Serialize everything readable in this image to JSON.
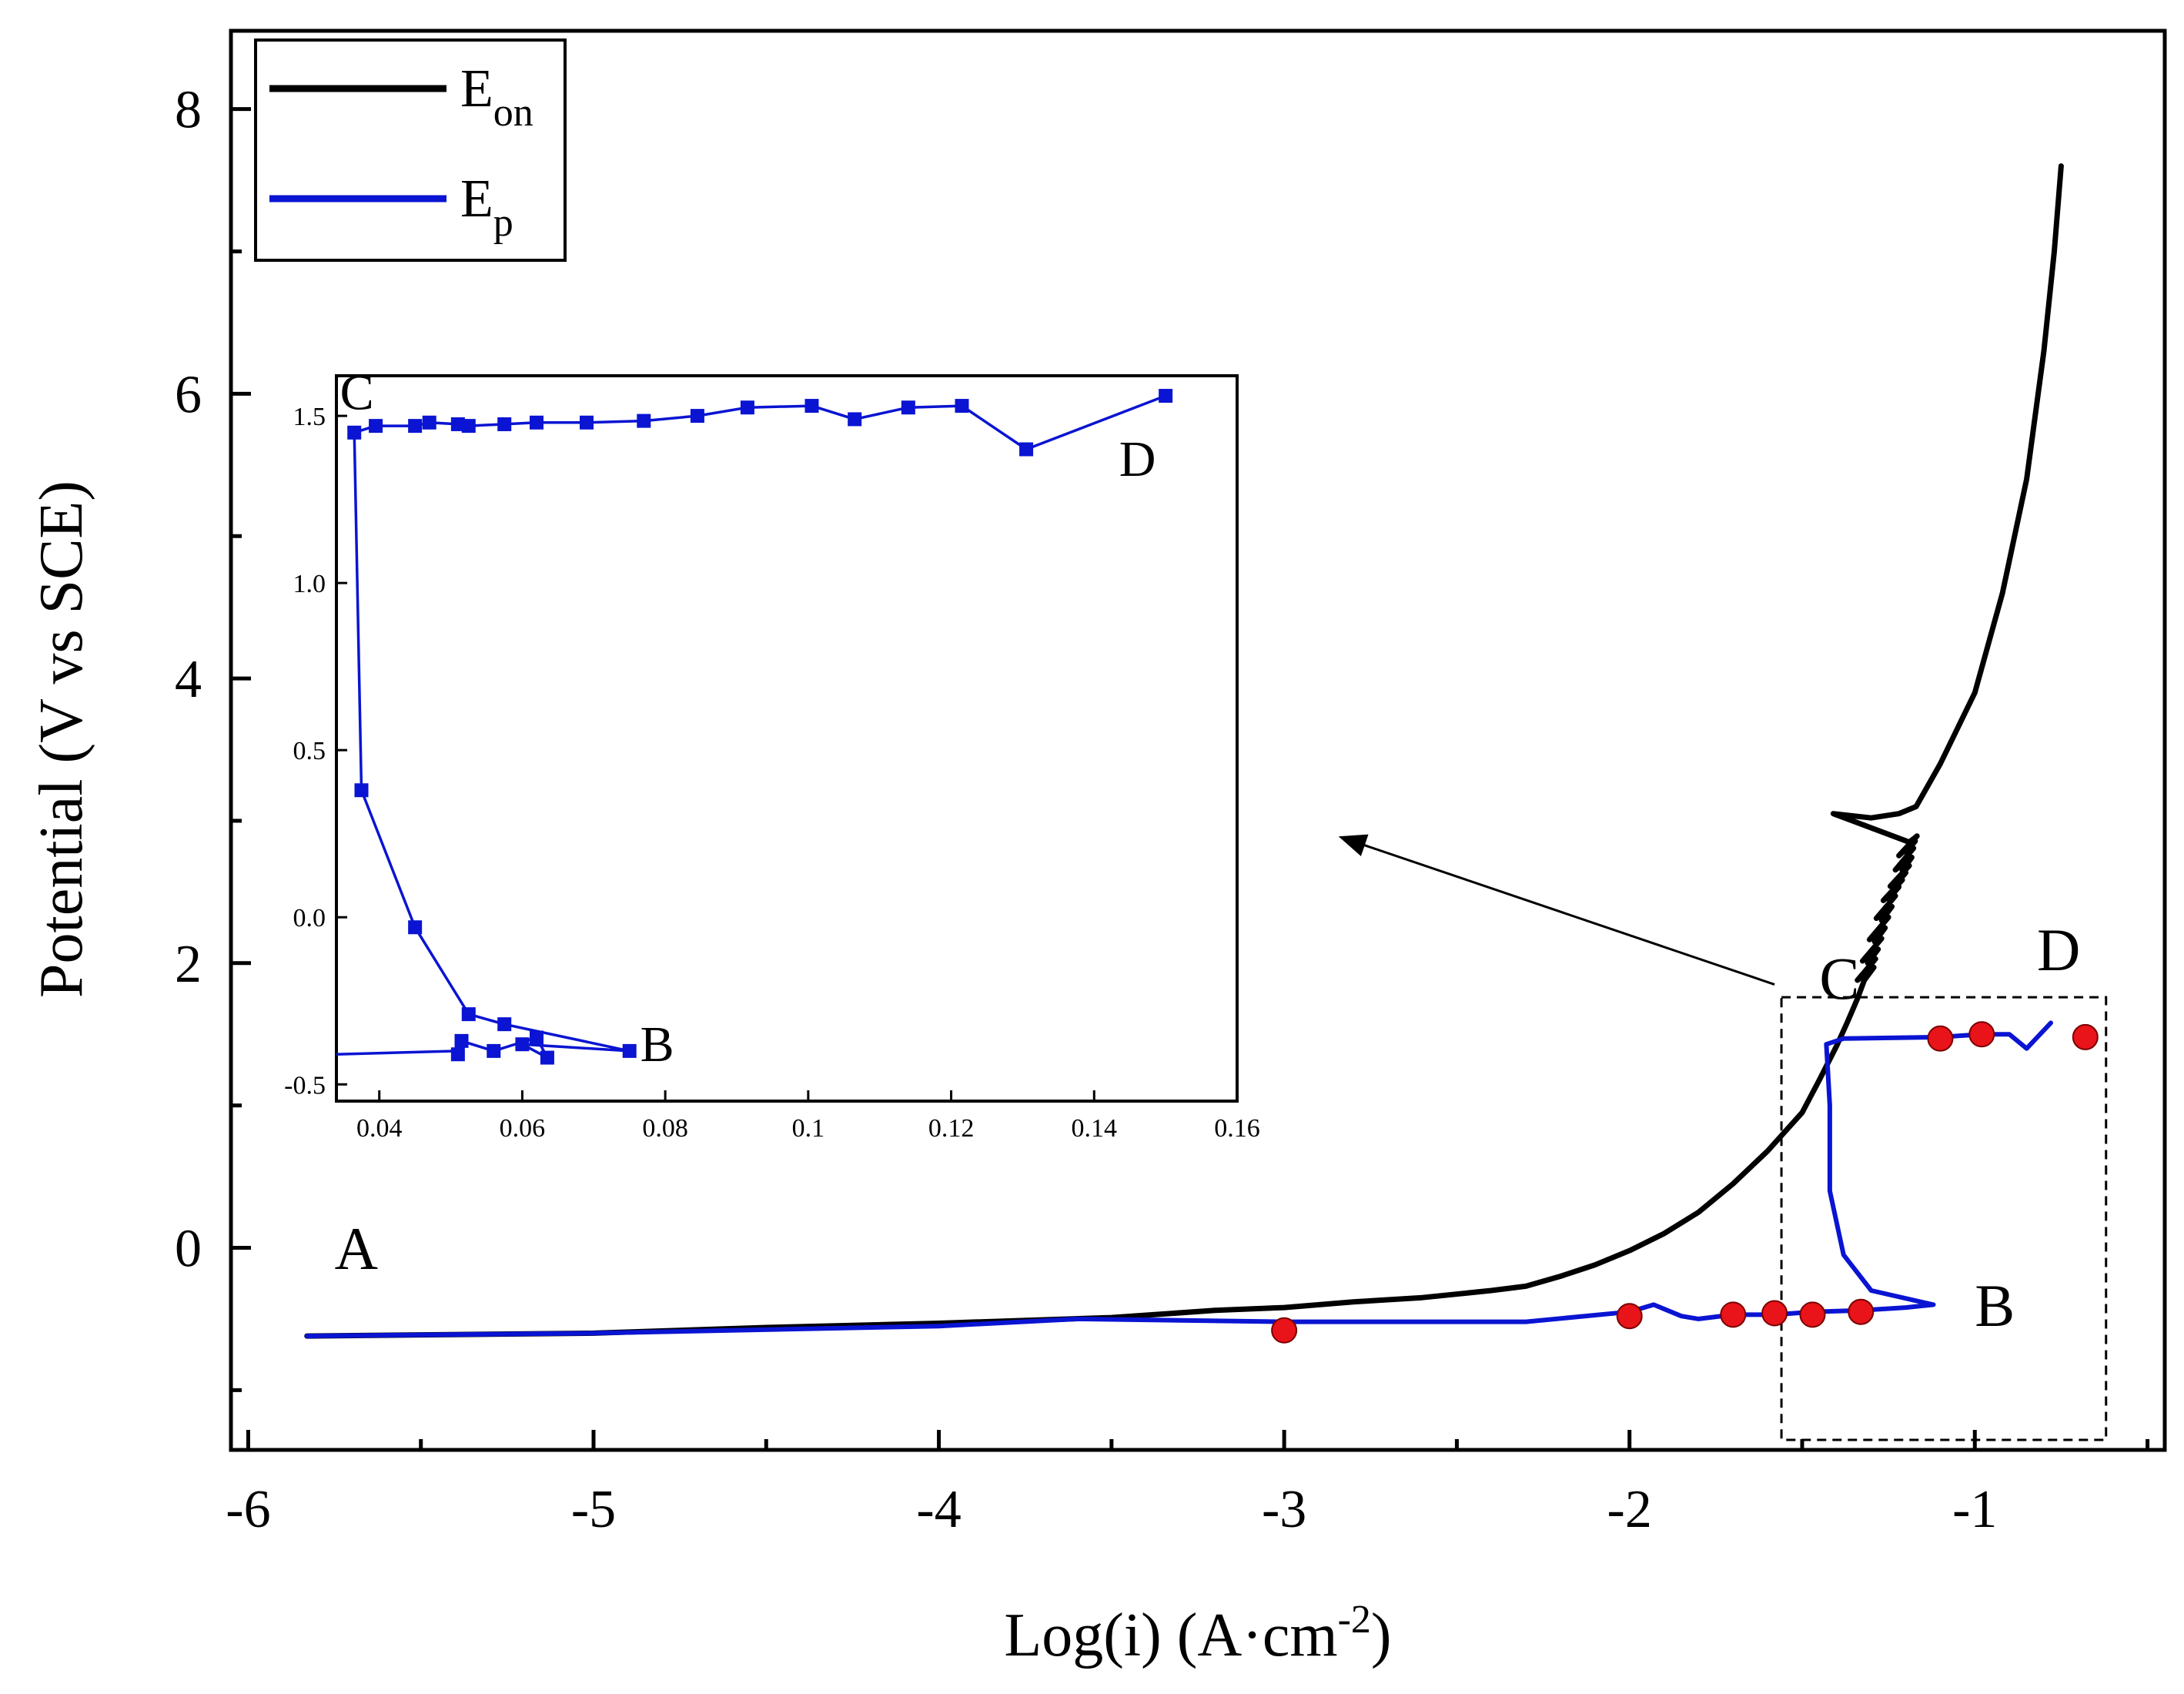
{
  "chart_data": {
    "type": "line",
    "xlabel": "Log(i) (A·cm",
    "xlabel_sup": "-2",
    "xlabel_end": ")",
    "ylabel": "Potential (V vs SCE)",
    "xlim": [
      -6.05,
      -0.45
    ],
    "ylim": [
      -1.42,
      8.55
    ],
    "xticks": [
      "-6",
      "-5",
      "-4",
      "-3",
      "-2",
      "-1"
    ],
    "yticks": [
      "0",
      "2",
      "4",
      "6",
      "8"
    ],
    "xtick_values": [
      -6,
      -5,
      -4,
      -3,
      -2,
      -1
    ],
    "ytick_values": [
      0,
      2,
      4,
      6,
      8
    ],
    "legend": [
      {
        "base": "E",
        "sub": "on",
        "color": "#000000"
      },
      {
        "base": "E",
        "sub": "p",
        "color": "#0a14d2"
      }
    ],
    "annotations": [
      {
        "text": "A",
        "x": -5.75,
        "y": -0.15
      },
      {
        "text": "B",
        "x": -1.0,
        "y": -0.55
      },
      {
        "text": "C",
        "x": -1.45,
        "y": 1.75
      },
      {
        "text": "D",
        "x": -0.82,
        "y": 1.95
      }
    ],
    "series": [
      {
        "name": "E_on",
        "color": "#000000",
        "points": [
          [
            -5.83,
            -0.62
          ],
          [
            -5.0,
            -0.6
          ],
          [
            -4.5,
            -0.56
          ],
          [
            -4.0,
            -0.53
          ],
          [
            -3.5,
            -0.49
          ],
          [
            -3.2,
            -0.44
          ],
          [
            -3.0,
            -0.42
          ],
          [
            -2.8,
            -0.38
          ],
          [
            -2.6,
            -0.35
          ],
          [
            -2.4,
            -0.3
          ],
          [
            -2.3,
            -0.27
          ],
          [
            -2.2,
            -0.2
          ],
          [
            -2.1,
            -0.12
          ],
          [
            -2.0,
            -0.02
          ],
          [
            -1.9,
            0.1
          ],
          [
            -1.8,
            0.25
          ],
          [
            -1.7,
            0.45
          ],
          [
            -1.6,
            0.68
          ],
          [
            -1.5,
            0.95
          ],
          [
            -1.45,
            1.18
          ],
          [
            -1.4,
            1.42
          ],
          [
            -1.37,
            1.58
          ],
          [
            -1.34,
            1.75
          ],
          [
            -1.32,
            1.88
          ],
          [
            -1.31,
            2.0
          ],
          [
            -1.29,
            2.15
          ],
          [
            -1.27,
            2.3
          ],
          [
            -1.25,
            2.45
          ],
          [
            -1.23,
            2.55
          ],
          [
            -1.21,
            2.65
          ],
          [
            -1.2,
            2.78
          ],
          [
            -1.19,
            2.85
          ],
          [
            -1.41,
            3.05
          ],
          [
            -1.3,
            3.02
          ],
          [
            -1.22,
            3.05
          ],
          [
            -1.17,
            3.1
          ],
          [
            -1.1,
            3.4
          ],
          [
            -1.0,
            3.9
          ],
          [
            -0.92,
            4.6
          ],
          [
            -0.85,
            5.4
          ],
          [
            -0.8,
            6.3
          ],
          [
            -0.77,
            7.0
          ],
          [
            -0.75,
            7.6
          ]
        ]
      },
      {
        "name": "E_p",
        "color": "#0a14d2",
        "points": [
          [
            -5.83,
            -0.62
          ],
          [
            -5.0,
            -0.6
          ],
          [
            -4.0,
            -0.55
          ],
          [
            -3.6,
            -0.5
          ],
          [
            -3.0,
            -0.52
          ],
          [
            -2.3,
            -0.52
          ],
          [
            -2.0,
            -0.45
          ],
          [
            -1.93,
            -0.4
          ],
          [
            -1.85,
            -0.48
          ],
          [
            -1.8,
            -0.5
          ],
          [
            -1.7,
            -0.47
          ],
          [
            -1.58,
            -0.47
          ],
          [
            -1.47,
            -0.45
          ],
          [
            -1.33,
            -0.44
          ],
          [
            -1.2,
            -0.42
          ],
          [
            -1.12,
            -0.4
          ],
          [
            -1.3,
            -0.3
          ],
          [
            -1.38,
            -0.05
          ],
          [
            -1.42,
            0.4
          ],
          [
            -1.42,
            1.0
          ],
          [
            -1.43,
            1.43
          ],
          [
            -1.38,
            1.47
          ],
          [
            -1.1,
            1.48
          ],
          [
            -0.98,
            1.5
          ],
          [
            -0.9,
            1.5
          ],
          [
            -0.85,
            1.4
          ],
          [
            -0.78,
            1.58
          ]
        ]
      }
    ],
    "markers": [
      [
        -3.0,
        -0.58
      ],
      [
        -2.0,
        -0.48
      ],
      [
        -1.7,
        -0.47
      ],
      [
        -1.58,
        -0.46
      ],
      [
        -1.47,
        -0.47
      ],
      [
        -1.33,
        -0.45
      ],
      [
        -1.1,
        1.47
      ],
      [
        -0.98,
        1.5
      ],
      [
        -0.68,
        1.48
      ]
    ],
    "zoom_box": {
      "x0": -1.56,
      "x1": -0.62,
      "y0": -1.35,
      "y1": 1.76
    },
    "arrow": {
      "from": [
        -1.58,
        1.85
      ],
      "to": [
        -2.83,
        2.88
      ]
    },
    "inset": {
      "xlim": [
        0.034,
        0.16
      ],
      "ylim": [
        -0.55,
        1.62
      ],
      "xticks": [
        "0.04",
        "0.06",
        "0.08",
        "0.1",
        "0.12",
        "0.14",
        "0.16"
      ],
      "yticks": [
        "-0.5",
        "0.0",
        "0.5",
        "1.0",
        "1.5"
      ],
      "xtick_values": [
        0.04,
        0.06,
        0.08,
        0.1,
        0.12,
        0.14,
        0.16
      ],
      "ytick_values": [
        -0.5,
        0.0,
        0.5,
        1.0,
        1.5
      ],
      "labels": [
        {
          "text": "C",
          "x": 0.0345,
          "y": 1.52
        },
        {
          "text": "D",
          "x": 0.1435,
          "y": 1.32
        },
        {
          "text": "B",
          "x": 0.0765,
          "y": -0.43
        }
      ],
      "lead_in": [
        [
          0.034,
          -0.41
        ],
        [
          0.051,
          -0.4
        ]
      ],
      "points": [
        [
          0.051,
          -0.41
        ],
        [
          0.0515,
          -0.37
        ],
        [
          0.056,
          -0.4
        ],
        [
          0.062,
          -0.36
        ],
        [
          0.0635,
          -0.42
        ],
        [
          0.06,
          -0.38
        ],
        [
          0.075,
          -0.4
        ],
        [
          0.0575,
          -0.32
        ],
        [
          0.0525,
          -0.29
        ],
        [
          0.045,
          -0.03
        ],
        [
          0.0375,
          0.38
        ],
        [
          0.0365,
          1.45
        ],
        [
          0.0395,
          1.47
        ],
        [
          0.045,
          1.47
        ],
        [
          0.047,
          1.48
        ],
        [
          0.051,
          1.475
        ],
        [
          0.0525,
          1.47
        ],
        [
          0.0575,
          1.475
        ],
        [
          0.062,
          1.48
        ],
        [
          0.069,
          1.48
        ],
        [
          0.077,
          1.485
        ],
        [
          0.0845,
          1.5
        ],
        [
          0.0915,
          1.525
        ],
        [
          0.1005,
          1.53
        ],
        [
          0.1065,
          1.49
        ],
        [
          0.114,
          1.525
        ],
        [
          0.1215,
          1.53
        ],
        [
          0.1305,
          1.4
        ],
        [
          0.15,
          1.56
        ]
      ]
    }
  }
}
